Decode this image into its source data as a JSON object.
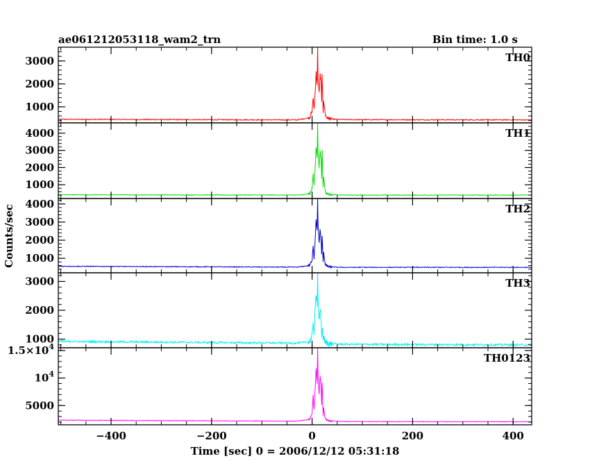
{
  "header": {
    "title": "ae061212053118_wam2_trn",
    "bin_time": "Bin time: 1.0 s"
  },
  "chart_data": {
    "type": "line",
    "xlabel": "Time [sec] 0 = 2006/12/12 05:31:18",
    "ylabel": "Counts/sec",
    "xlim": [
      -505,
      437
    ],
    "x_ticks": [
      {
        "v": -400,
        "label": "−400"
      },
      {
        "v": -200,
        "label": "−200"
      },
      {
        "v": 0,
        "label": "0"
      },
      {
        "v": 200,
        "label": "200"
      },
      {
        "v": 400,
        "label": "400"
      }
    ],
    "grid": false,
    "panels": [
      {
        "label": "TH0",
        "color": "#ff0000",
        "ylim": [
          300,
          3600
        ],
        "y_ticks": [
          {
            "v": 1000,
            "label": "1000"
          },
          {
            "v": 2000,
            "label": "2000"
          },
          {
            "v": 3000,
            "label": "3000"
          }
        ],
        "baseline_start": 460,
        "baseline_end": 430,
        "noise": 22,
        "curve": [
          [
            -505,
            455
          ],
          [
            -30,
            430
          ],
          [
            -5,
            520
          ],
          [
            0,
            800
          ],
          [
            2,
            1400
          ],
          [
            4,
            900
          ],
          [
            6,
            1600
          ],
          [
            8,
            2500
          ],
          [
            10,
            1900
          ],
          [
            11,
            3600
          ],
          [
            12,
            2200
          ],
          [
            14,
            1600
          ],
          [
            16,
            2400
          ],
          [
            18,
            2100
          ],
          [
            19,
            1200
          ],
          [
            20,
            2400
          ],
          [
            22,
            700
          ],
          [
            23,
            1300
          ],
          [
            25,
            900
          ],
          [
            26,
            700
          ],
          [
            28,
            550
          ],
          [
            35,
            470
          ],
          [
            60,
            440
          ],
          [
            437,
            430
          ]
        ]
      },
      {
        "label": "TH1",
        "color": "#00dd00",
        "ylim": [
          200,
          4600
        ],
        "y_ticks": [
          {
            "v": 1000,
            "label": "1000"
          },
          {
            "v": 2000,
            "label": "2000"
          },
          {
            "v": 3000,
            "label": "3000"
          },
          {
            "v": 4000,
            "label": "4000"
          }
        ],
        "baseline_start": 420,
        "baseline_end": 400,
        "noise": 20,
        "curve": [
          [
            -505,
            420
          ],
          [
            -30,
            400
          ],
          [
            -5,
            470
          ],
          [
            0,
            800
          ],
          [
            2,
            1600
          ],
          [
            4,
            1000
          ],
          [
            6,
            2000
          ],
          [
            8,
            3200
          ],
          [
            10,
            2600
          ],
          [
            11,
            4600
          ],
          [
            12,
            2800
          ],
          [
            14,
            2000
          ],
          [
            16,
            3000
          ],
          [
            18,
            2500
          ],
          [
            19,
            1400
          ],
          [
            20,
            3000
          ],
          [
            22,
            800
          ],
          [
            23,
            1500
          ],
          [
            25,
            900
          ],
          [
            26,
            700
          ],
          [
            28,
            500
          ],
          [
            35,
            430
          ],
          [
            60,
            400
          ],
          [
            437,
            400
          ]
        ]
      },
      {
        "label": "TH2",
        "color": "#0000cc",
        "ylim": [
          200,
          4300
        ],
        "y_ticks": [
          {
            "v": 1000,
            "label": "1000"
          },
          {
            "v": 2000,
            "label": "2000"
          },
          {
            "v": 3000,
            "label": "3000"
          },
          {
            "v": 4000,
            "label": "4000"
          }
        ],
        "baseline_start": 560,
        "baseline_end": 500,
        "noise": 22,
        "curve": [
          [
            -505,
            560
          ],
          [
            -30,
            510
          ],
          [
            -5,
            600
          ],
          [
            0,
            900
          ],
          [
            2,
            1700
          ],
          [
            4,
            1000
          ],
          [
            6,
            2000
          ],
          [
            8,
            3100
          ],
          [
            10,
            2500
          ],
          [
            11,
            4300
          ],
          [
            12,
            2800
          ],
          [
            14,
            1800
          ],
          [
            16,
            2600
          ],
          [
            18,
            2000
          ],
          [
            19,
            1200
          ],
          [
            20,
            2200
          ],
          [
            22,
            800
          ],
          [
            23,
            1300
          ],
          [
            25,
            900
          ],
          [
            26,
            700
          ],
          [
            28,
            600
          ],
          [
            35,
            520
          ],
          [
            60,
            500
          ],
          [
            437,
            500
          ]
        ]
      },
      {
        "label": "TH3",
        "color": "#00eeee",
        "ylim": [
          700,
          3300
        ],
        "y_ticks": [
          {
            "v": 1000,
            "label": "1000"
          },
          {
            "v": 2000,
            "label": "2000"
          },
          {
            "v": 3000,
            "label": "3000"
          }
        ],
        "baseline_start": 920,
        "baseline_end": 800,
        "noise": 35,
        "curve": [
          [
            -505,
            920
          ],
          [
            -30,
            860
          ],
          [
            -5,
            900
          ],
          [
            0,
            1100
          ],
          [
            2,
            1600
          ],
          [
            4,
            1200
          ],
          [
            6,
            2000
          ],
          [
            8,
            2600
          ],
          [
            10,
            2200
          ],
          [
            11,
            3300
          ],
          [
            12,
            2300
          ],
          [
            14,
            1600
          ],
          [
            16,
            2000
          ],
          [
            18,
            1700
          ],
          [
            19,
            1100
          ],
          [
            20,
            1400
          ],
          [
            22,
            1000
          ],
          [
            23,
            1100
          ],
          [
            25,
            950
          ],
          [
            26,
            900
          ],
          [
            28,
            870
          ],
          [
            35,
            840
          ],
          [
            60,
            820
          ],
          [
            437,
            800
          ]
        ]
      },
      {
        "label": "TH0123",
        "color": "#ff00ff",
        "ylim": [
          1500,
          15500
        ],
        "y_ticks": [
          {
            "v": 5000,
            "label": "5000"
          },
          {
            "v": 10000,
            "label": "10^4"
          },
          {
            "v": 15000,
            "label": "1.5×10^4"
          }
        ],
        "baseline_start": 2350,
        "baseline_end": 2050,
        "noise": 50,
        "curve": [
          [
            -505,
            2350
          ],
          [
            -30,
            2150
          ],
          [
            -5,
            2500
          ],
          [
            0,
            3500
          ],
          [
            2,
            6800
          ],
          [
            4,
            4200
          ],
          [
            6,
            8000
          ],
          [
            8,
            11800
          ],
          [
            10,
            9000
          ],
          [
            11,
            15500
          ],
          [
            12,
            10000
          ],
          [
            14,
            7000
          ],
          [
            16,
            10500
          ],
          [
            18,
            8500
          ],
          [
            19,
            5000
          ],
          [
            20,
            9200
          ],
          [
            22,
            3000
          ],
          [
            23,
            4800
          ],
          [
            25,
            3200
          ],
          [
            26,
            2700
          ],
          [
            28,
            2400
          ],
          [
            35,
            2200
          ],
          [
            60,
            2100
          ],
          [
            437,
            2050
          ]
        ]
      }
    ]
  }
}
